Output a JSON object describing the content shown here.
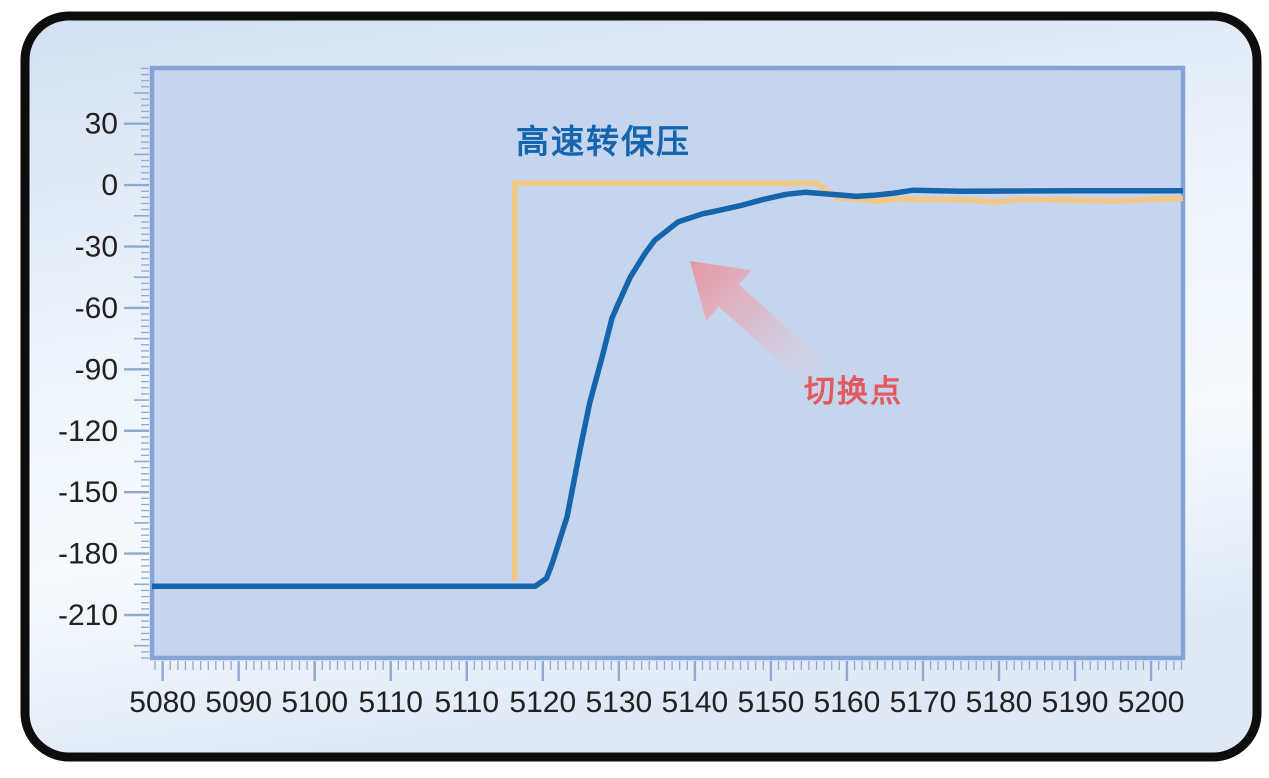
{
  "chart_data": {
    "type": "line",
    "title": "高速转保压",
    "annotation": {
      "label": "切换点",
      "arrow": "points-up-left-at-curve-knee"
    },
    "x_tick_labels": [
      "5080",
      "5090",
      "5100",
      "5110",
      "5110",
      "5120",
      "5130",
      "5140",
      "5150",
      "5160",
      "5170",
      "5180",
      "5190",
      "5200"
    ],
    "x_tick_note": "labels exactly as shown in source image; '5110' is printed twice; ticks are evenly spaced, 10 plot-units apart starting at 5080",
    "y_tick_values": [
      30,
      0,
      -30,
      -60,
      -90,
      -120,
      -150,
      -180,
      -210
    ],
    "x_range": [
      5078.6,
      5214.2
    ],
    "y_range": [
      -231,
      57.2
    ],
    "grid": "off",
    "legend": "none",
    "series": [
      {
        "id": "switchover-step-line",
        "color": "#f3c784",
        "points": [
          [
            5126.3,
            -193
          ],
          [
            5126.3,
            1
          ],
          [
            5166,
            1
          ],
          [
            5168.7,
            -6.3
          ],
          [
            5171,
            -6.8
          ],
          [
            5173.8,
            -7.8
          ],
          [
            5176.5,
            -6.8
          ],
          [
            5181,
            -7
          ],
          [
            5186,
            -7.3
          ],
          [
            5189.5,
            -8.3
          ],
          [
            5193,
            -7
          ],
          [
            5199,
            -7.3
          ],
          [
            5205,
            -7.8
          ],
          [
            5210,
            -7
          ],
          [
            5214.2,
            -6.5
          ]
        ]
      },
      {
        "id": "actual-response-curve",
        "color": "#1565ad",
        "points": [
          [
            5078.6,
            -196
          ],
          [
            5129,
            -196
          ],
          [
            5130.5,
            -192
          ],
          [
            5131.3,
            -184
          ],
          [
            5133.2,
            -162
          ],
          [
            5134.9,
            -129
          ],
          [
            5136.2,
            -106
          ],
          [
            5137.8,
            -84
          ],
          [
            5139.1,
            -65
          ],
          [
            5139.8,
            -59
          ],
          [
            5141.5,
            -45
          ],
          [
            5143.5,
            -33
          ],
          [
            5144.7,
            -27
          ],
          [
            5147.8,
            -18
          ],
          [
            5151,
            -14
          ],
          [
            5153,
            -12.5
          ],
          [
            5156,
            -10
          ],
          [
            5159,
            -7
          ],
          [
            5162,
            -4.5
          ],
          [
            5164.5,
            -3.5
          ],
          [
            5167,
            -4.2
          ],
          [
            5169.5,
            -5
          ],
          [
            5171.2,
            -5.5
          ],
          [
            5173.5,
            -5
          ],
          [
            5176,
            -4
          ],
          [
            5178.7,
            -2.5
          ],
          [
            5185,
            -3
          ],
          [
            5200,
            -2.8
          ],
          [
            5214.2,
            -2.8
          ]
        ]
      }
    ]
  },
  "colors": {
    "frame_border": "#0d0d0d",
    "panel_gradient_top": "#d3e0f2",
    "panel_gradient_mid": "#eef4fb",
    "panel_gradient_low": "#f6fafd",
    "panel_gradient_bottom": "#dfe9f6",
    "plot_background": "#c6d5ee",
    "plot_border": "#85a3d4",
    "ruler_tick": "#8fa9d2",
    "tick_label": "#212121",
    "title_text": "#1464ae",
    "switch_label_text": "#e2595f",
    "arrow_head": "#e8939f",
    "arrow_tail": "#f3c4c8",
    "blue_curve": "#1565ad",
    "orange_step": "#f3c784"
  }
}
